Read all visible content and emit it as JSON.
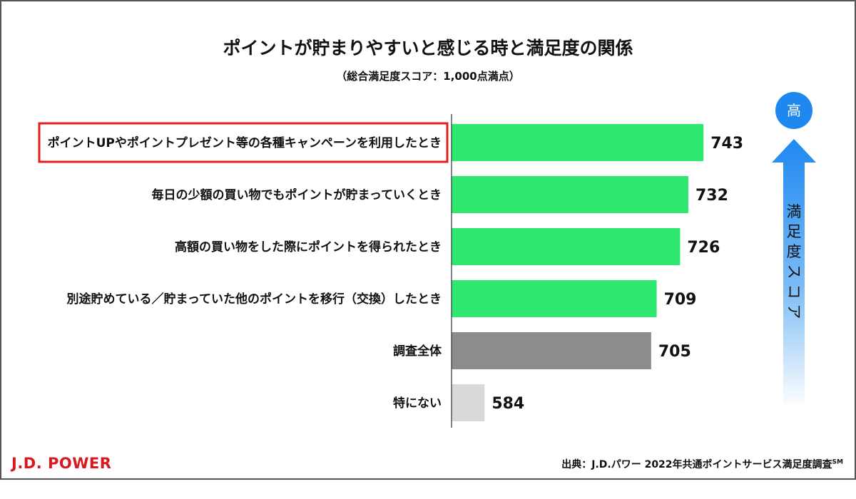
{
  "chart_data": {
    "type": "bar",
    "orientation": "horizontal",
    "title": "ポイントが貯まりやすいと感じる時と満足度の関係",
    "subtitle": "（総合満足度スコア：1,000点満点）",
    "categories": [
      "ポイントUPやポイントプレゼント等の各種キャンペーンを利用したとき",
      "毎日の少額の買い物でもポイントが貯まっていくとき",
      "高額の買い物をした際にポイントを得られたとき",
      "別途貯めている／貯まっていた他のポイントを移行（交換）したとき",
      "調査全体",
      "特にない"
    ],
    "values": [
      743,
      732,
      726,
      709,
      705,
      584
    ],
    "bar_colors": [
      "#2ee870",
      "#2ee870",
      "#2ee870",
      "#2ee870",
      "#8c8c8c",
      "#d9d9d9"
    ],
    "highlighted_index": 0,
    "highlight_color": "#e02020",
    "grid": false,
    "legend": "none"
  },
  "scale_indicator": {
    "top_label": "高",
    "axis_label": "満足度スコア",
    "badge_color": "#1e88f0"
  },
  "footer": {
    "brand": "J.D. POWER",
    "brand_color": "#d71920",
    "source": "出典：J.D.パワー 2022年共通ポイントサービス満足度調査",
    "source_mark": "SM"
  }
}
